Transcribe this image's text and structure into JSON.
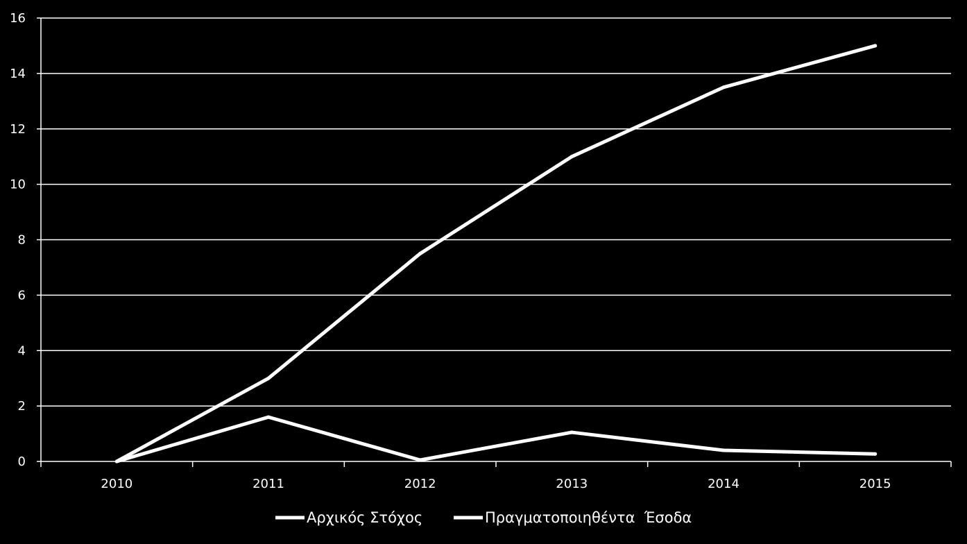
{
  "chart_data": {
    "type": "line",
    "title": "",
    "xlabel": "",
    "ylabel": "",
    "categories": [
      "2010",
      "2011",
      "2012",
      "2013",
      "2014",
      "2015"
    ],
    "ylim": [
      0,
      16
    ],
    "yticks": [
      "0",
      "2",
      "4",
      "6",
      "8",
      "10",
      "12",
      "14",
      "16"
    ],
    "grid": true,
    "legend_position": "bottom",
    "series": [
      {
        "name": "Αρχικός Στόχος",
        "values": [
          0,
          3,
          7.5,
          11,
          13.5,
          15
        ],
        "color": "#ffffff"
      },
      {
        "name": "Πραγματοποιηθέντα  Έσοδα",
        "values": [
          0,
          1.6,
          0.05,
          1.05,
          0.4,
          0.27
        ],
        "color": "#ffffff"
      }
    ],
    "background": "#000000",
    "gridline_color": "#ffffff"
  }
}
